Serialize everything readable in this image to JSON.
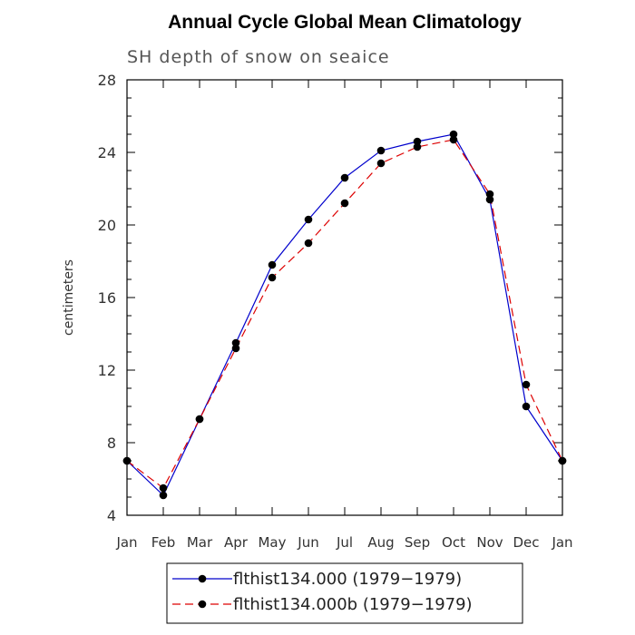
{
  "chart_data": {
    "type": "line",
    "title": "Annual Cycle Global Mean Climatology",
    "subtitle": "SH depth of snow on seaice",
    "xlabel": "",
    "ylabel": "centimeters",
    "ylim": [
      4,
      28
    ],
    "yticks": [
      "4",
      "8",
      "12",
      "16",
      "20",
      "24",
      "28"
    ],
    "categories": [
      "Jan",
      "Feb",
      "Mar",
      "Apr",
      "May",
      "Jun",
      "Jul",
      "Aug",
      "Sep",
      "Oct",
      "Nov",
      "Dec",
      "Jan"
    ],
    "series": [
      {
        "name": "flthist134.000 (1979−1979)",
        "color": "#0000cc",
        "dash": "solid",
        "values": [
          7.0,
          5.1,
          9.3,
          13.5,
          17.8,
          20.3,
          22.6,
          24.1,
          24.6,
          25.0,
          21.4,
          10.0,
          7.0
        ]
      },
      {
        "name": "flthist134.000b (1979−1979)",
        "color": "#dd0000",
        "dash": "dashed",
        "values": [
          7.0,
          5.5,
          9.3,
          13.2,
          17.1,
          19.0,
          21.2,
          23.4,
          24.3,
          24.7,
          21.7,
          11.2,
          7.0
        ]
      }
    ],
    "legend_position": "bottom"
  }
}
